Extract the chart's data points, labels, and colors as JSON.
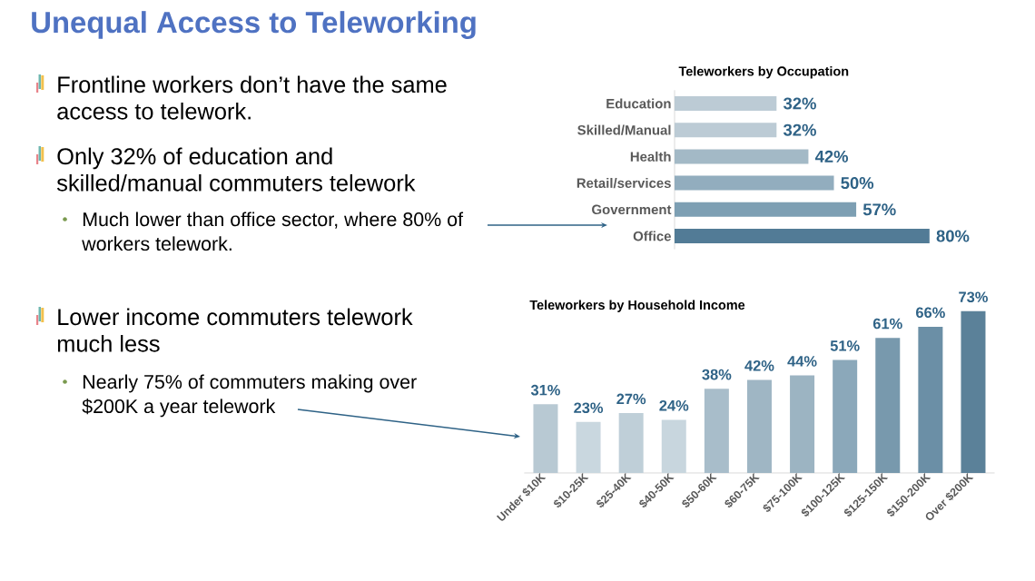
{
  "chart_data": [
    {
      "type": "other",
      "title": "Unequal Access to Teleworking",
      "annotations": [
        "Frontline workers don’t have the same access to telework.",
        "Only 32% of education and skilled/manual commuters telework",
        "Much lower than office sector, where 80% of workers telework.",
        "Lower income commuters telework much less",
        "Nearly 75% of commuters making over $200K a year telework"
      ]
    },
    {
      "type": "bar",
      "orientation": "horizontal",
      "title": "Teleworkers by Occupation",
      "categories": [
        "Education",
        "Skilled/Manual",
        "Health",
        "Retail/services",
        "Government",
        "Office"
      ],
      "values": [
        32,
        32,
        42,
        50,
        57,
        80
      ],
      "colors": [
        "#bccbd5",
        "#bccbd5",
        "#a3b9c6",
        "#92adbe",
        "#7d9fb3",
        "#527b96"
      ],
      "value_labels": [
        "32%",
        "32%",
        "42%",
        "50%",
        "57%",
        "80%"
      ]
    },
    {
      "type": "bar",
      "title": "Teleworkers by Household Income",
      "categories": [
        "Under $10K",
        "$10-25K",
        "$25-40K",
        "$40-50K",
        "$50-60K",
        "$60-75K",
        "$75-100K",
        "$100-125K",
        "$125-150K",
        "$150-200K",
        "Over $200K"
      ],
      "values": [
        31,
        23,
        27,
        24,
        38,
        42,
        44,
        51,
        61,
        66,
        73
      ],
      "colors": [
        "#b8c9d3",
        "#c9d7df",
        "#bfcfd8",
        "#c8d6de",
        "#a8bdca",
        "#9fb6c4",
        "#9cb4c2",
        "#8ba8ba",
        "#7899ad",
        "#6b8fa6",
        "#5b8199"
      ],
      "value_labels": [
        "31%",
        "23%",
        "27%",
        "24%",
        "38%",
        "42%",
        "44%",
        "51%",
        "61%",
        "66%",
        "73%"
      ]
    }
  ]
}
